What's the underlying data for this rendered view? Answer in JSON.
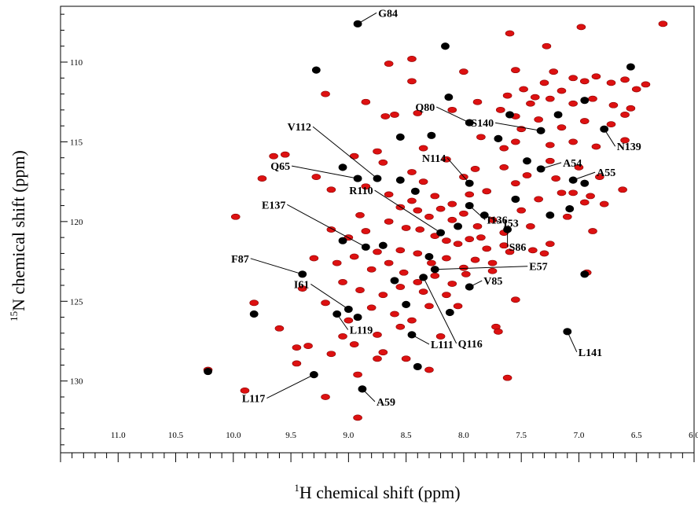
{
  "chart_data": {
    "type": "scatter",
    "title": "",
    "xlabel": {
      "superscript": "1",
      "text": "H chemical shift (ppm)"
    },
    "ylabel": {
      "superscript": "15",
      "text": "N chemical shift (ppm)"
    },
    "xlim": [
      11.5,
      6.0
    ],
    "ylim": [
      106.5,
      134.5
    ],
    "x_reversed": true,
    "y_reversed": true,
    "x_ticks": [
      "11.0",
      "10.5",
      "10.0",
      "9.5",
      "9.0",
      "8.5",
      "8.0",
      "7.5",
      "7.0",
      "6.5",
      "6.0"
    ],
    "x_tick_values": [
      11.0,
      10.5,
      10.0,
      9.5,
      9.0,
      8.5,
      8.0,
      7.5,
      7.0,
      6.5,
      6.0
    ],
    "y_ticks": [
      "110",
      "115",
      "120",
      "125",
      "130"
    ],
    "y_tick_values": [
      110,
      115,
      120,
      125,
      130
    ],
    "grid": false,
    "colors": {
      "reference_spectrum": "#000000",
      "overlay_spectrum": "#dd1111"
    },
    "labeled_peaks": [
      {
        "label": "G84",
        "x": 8.92,
        "y": 107.6
      },
      {
        "label": "Q80",
        "x": 7.95,
        "y": 113.8
      },
      {
        "label": "S140",
        "x": 7.33,
        "y": 114.3
      },
      {
        "label": "N139",
        "x": 6.78,
        "y": 114.2
      },
      {
        "label": "V112",
        "x": 8.75,
        "y": 117.3
      },
      {
        "label": "A54",
        "x": 7.33,
        "y": 116.7
      },
      {
        "label": "A55",
        "x": 7.05,
        "y": 117.4
      },
      {
        "label": "Q65",
        "x": 8.92,
        "y": 117.3
      },
      {
        "label": "N114",
        "x": 7.95,
        "y": 117.6
      },
      {
        "label": "E137",
        "x": 8.85,
        "y": 121.6
      },
      {
        "label": "R110",
        "x": 8.2,
        "y": 120.7
      },
      {
        "label": "I136",
        "x": 7.95,
        "y": 119.0
      },
      {
        "label": "I53",
        "x": 7.82,
        "y": 119.6
      },
      {
        "label": "S86",
        "x": 7.62,
        "y": 120.5
      },
      {
        "label": "F87",
        "x": 9.4,
        "y": 123.3
      },
      {
        "label": "E57",
        "x": 8.25,
        "y": 123.0
      },
      {
        "label": "V85",
        "x": 7.95,
        "y": 124.1
      },
      {
        "label": "I61",
        "x": 9.0,
        "y": 125.5
      },
      {
        "label": "L119",
        "x": 9.1,
        "y": 125.8
      },
      {
        "label": "L111",
        "x": 8.45,
        "y": 127.1
      },
      {
        "label": "Q116",
        "x": 8.35,
        "y": 123.5
      },
      {
        "label": "L141",
        "x": 7.1,
        "y": 126.9
      },
      {
        "label": "L117",
        "x": 9.3,
        "y": 129.6
      },
      {
        "label": "A59",
        "x": 8.88,
        "y": 130.5
      }
    ],
    "black_peaks": [
      [
        9.28,
        110.5
      ],
      [
        8.16,
        109.0
      ],
      [
        8.13,
        112.2
      ],
      [
        6.55,
        110.3
      ],
      [
        8.28,
        114.6
      ],
      [
        8.55,
        114.7
      ],
      [
        7.7,
        114.8
      ],
      [
        7.45,
        116.2
      ],
      [
        7.18,
        113.3
      ],
      [
        6.95,
        117.6
      ],
      [
        7.08,
        119.2
      ],
      [
        8.55,
        117.4
      ],
      [
        9.05,
        121.2
      ],
      [
        8.05,
        120.3
      ],
      [
        8.7,
        121.5
      ],
      [
        8.42,
        118.1
      ],
      [
        8.92,
        126.0
      ],
      [
        9.82,
        125.8
      ],
      [
        8.5,
        125.2
      ],
      [
        8.12,
        125.7
      ],
      [
        8.3,
        122.2
      ],
      [
        8.6,
        123.7
      ],
      [
        6.95,
        123.3
      ],
      [
        7.25,
        119.6
      ],
      [
        8.4,
        129.1
      ],
      [
        10.22,
        129.4
      ],
      [
        7.55,
        118.6
      ],
      [
        9.05,
        116.6
      ],
      [
        7.6,
        113.3
      ],
      [
        6.95,
        112.4
      ]
    ],
    "red_peaks": [
      [
        8.45,
        111.2
      ],
      [
        8.0,
        110.6
      ],
      [
        7.6,
        108.2
      ],
      [
        6.98,
        107.8
      ],
      [
        6.27,
        107.6
      ],
      [
        8.65,
        110.1
      ],
      [
        8.45,
        109.8
      ],
      [
        7.28,
        109.0
      ],
      [
        7.55,
        110.5
      ],
      [
        7.22,
        110.6
      ],
      [
        7.05,
        111.0
      ],
      [
        6.95,
        111.2
      ],
      [
        6.85,
        110.9
      ],
      [
        6.72,
        111.3
      ],
      [
        6.6,
        111.1
      ],
      [
        6.5,
        111.7
      ],
      [
        6.42,
        111.4
      ],
      [
        7.38,
        112.2
      ],
      [
        7.48,
        111.7
      ],
      [
        7.62,
        112.1
      ],
      [
        7.42,
        112.6
      ],
      [
        7.25,
        112.3
      ],
      [
        7.05,
        112.6
      ],
      [
        6.88,
        112.3
      ],
      [
        6.7,
        112.7
      ],
      [
        6.55,
        112.9
      ],
      [
        7.55,
        113.4
      ],
      [
        7.35,
        113.6
      ],
      [
        7.15,
        114.1
      ],
      [
        6.95,
        113.7
      ],
      [
        6.72,
        113.9
      ],
      [
        6.6,
        113.3
      ],
      [
        7.68,
        113.0
      ],
      [
        7.3,
        111.3
      ],
      [
        7.15,
        111.8
      ],
      [
        9.2,
        112.0
      ],
      [
        8.85,
        112.5
      ],
      [
        8.68,
        113.4
      ],
      [
        8.4,
        113.2
      ],
      [
        8.1,
        113.0
      ],
      [
        7.88,
        112.5
      ],
      [
        7.85,
        114.7
      ],
      [
        7.55,
        115.0
      ],
      [
        7.25,
        115.2
      ],
      [
        7.05,
        115.0
      ],
      [
        6.85,
        115.3
      ],
      [
        6.6,
        114.9
      ],
      [
        9.55,
        115.8
      ],
      [
        8.95,
        115.9
      ],
      [
        8.75,
        115.6
      ],
      [
        8.35,
        115.4
      ],
      [
        8.15,
        116.1
      ],
      [
        7.65,
        116.6
      ],
      [
        7.45,
        117.1
      ],
      [
        7.25,
        116.2
      ],
      [
        7.0,
        116.6
      ],
      [
        6.82,
        117.2
      ],
      [
        6.62,
        118.0
      ],
      [
        6.9,
        118.4
      ],
      [
        7.15,
        118.2
      ],
      [
        7.35,
        118.6
      ],
      [
        7.55,
        117.6
      ],
      [
        9.28,
        117.2
      ],
      [
        9.15,
        118.0
      ],
      [
        8.85,
        117.8
      ],
      [
        8.65,
        118.3
      ],
      [
        8.45,
        118.7
      ],
      [
        8.35,
        117.5
      ],
      [
        8.25,
        118.4
      ],
      [
        8.1,
        118.9
      ],
      [
        7.95,
        118.3
      ],
      [
        7.8,
        118.1
      ],
      [
        8.55,
        119.1
      ],
      [
        8.4,
        119.3
      ],
      [
        8.3,
        119.7
      ],
      [
        8.2,
        119.2
      ],
      [
        8.1,
        119.9
      ],
      [
        8.0,
        119.5
      ],
      [
        7.88,
        120.3
      ],
      [
        7.75,
        119.9
      ],
      [
        7.65,
        120.7
      ],
      [
        7.5,
        119.3
      ],
      [
        8.65,
        120.0
      ],
      [
        8.5,
        120.4
      ],
      [
        8.38,
        120.5
      ],
      [
        8.25,
        120.9
      ],
      [
        8.15,
        121.2
      ],
      [
        8.05,
        121.4
      ],
      [
        7.95,
        121.1
      ],
      [
        7.8,
        121.7
      ],
      [
        7.65,
        121.5
      ],
      [
        9.15,
        120.5
      ],
      [
        9.0,
        121.0
      ],
      [
        8.85,
        120.6
      ],
      [
        8.75,
        121.9
      ],
      [
        8.55,
        121.8
      ],
      [
        8.4,
        122.0
      ],
      [
        8.28,
        122.6
      ],
      [
        8.15,
        122.3
      ],
      [
        8.0,
        122.9
      ],
      [
        7.9,
        122.4
      ],
      [
        9.3,
        122.3
      ],
      [
        9.1,
        122.6
      ],
      [
        8.95,
        122.2
      ],
      [
        8.8,
        123.0
      ],
      [
        8.65,
        122.6
      ],
      [
        8.52,
        123.2
      ],
      [
        8.4,
        123.8
      ],
      [
        8.25,
        123.4
      ],
      [
        8.1,
        123.9
      ],
      [
        7.98,
        123.3
      ],
      [
        7.75,
        123.1
      ],
      [
        9.05,
        123.8
      ],
      [
        8.9,
        124.3
      ],
      [
        8.7,
        124.6
      ],
      [
        8.55,
        124.1
      ],
      [
        8.35,
        124.4
      ],
      [
        8.15,
        124.6
      ],
      [
        9.4,
        124.2
      ],
      [
        9.2,
        125.1
      ],
      [
        9.0,
        126.2
      ],
      [
        8.8,
        125.4
      ],
      [
        8.6,
        125.8
      ],
      [
        8.3,
        125.3
      ],
      [
        8.05,
        125.3
      ],
      [
        7.55,
        124.9
      ],
      [
        7.72,
        126.6
      ],
      [
        7.7,
        126.9
      ],
      [
        8.75,
        127.1
      ],
      [
        8.7,
        128.2
      ],
      [
        8.55,
        126.6
      ],
      [
        8.45,
        126.2
      ],
      [
        8.2,
        127.2
      ],
      [
        9.35,
        127.8
      ],
      [
        9.45,
        127.9
      ],
      [
        9.15,
        128.3
      ],
      [
        8.95,
        127.7
      ],
      [
        9.05,
        127.2
      ],
      [
        9.45,
        128.9
      ],
      [
        9.6,
        126.7
      ],
      [
        9.82,
        125.1
      ],
      [
        9.75,
        117.3
      ],
      [
        9.65,
        115.9
      ],
      [
        9.98,
        119.7
      ],
      [
        10.22,
        129.3
      ],
      [
        9.9,
        130.6
      ],
      [
        9.2,
        131.0
      ],
      [
        8.92,
        129.6
      ],
      [
        8.92,
        132.3
      ],
      [
        8.5,
        128.6
      ],
      [
        8.3,
        129.3
      ],
      [
        7.62,
        129.8
      ],
      [
        6.93,
        123.2
      ],
      [
        6.88,
        120.6
      ],
      [
        6.95,
        118.8
      ],
      [
        7.1,
        119.7
      ],
      [
        7.25,
        121.4
      ],
      [
        7.4,
        121.8
      ],
      [
        7.42,
        120.3
      ],
      [
        8.75,
        128.6
      ],
      [
        8.6,
        113.3
      ],
      [
        7.9,
        116.7
      ],
      [
        8.0,
        117.2
      ],
      [
        8.7,
        116.3
      ],
      [
        8.45,
        116.9
      ],
      [
        7.5,
        114.2
      ],
      [
        7.65,
        115.4
      ],
      [
        7.2,
        117.3
      ],
      [
        7.05,
        118.2
      ],
      [
        6.78,
        118.9
      ],
      [
        7.3,
        122.0
      ],
      [
        7.75,
        122.6
      ],
      [
        7.6,
        121.9
      ],
      [
        7.85,
        121.0
      ],
      [
        8.9,
        119.6
      ]
    ]
  }
}
